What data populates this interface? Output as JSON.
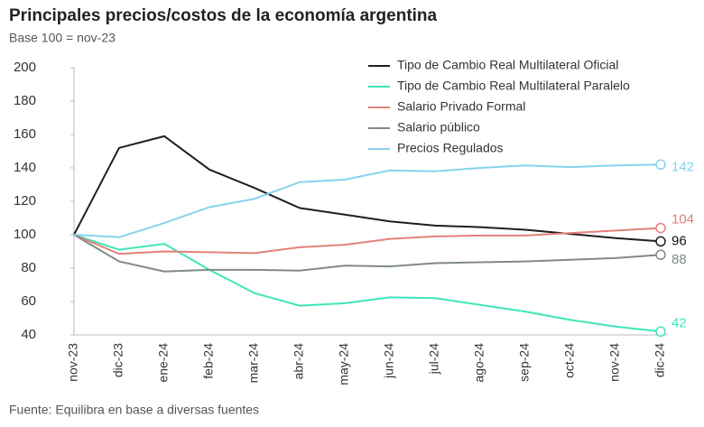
{
  "chart_data": {
    "type": "line",
    "title": "Principales precios/costos de la economía argentina",
    "subtitle": "Base 100 = nov-23",
    "source": "Fuente: Equilibra en base a diversas fuentes",
    "categories": [
      "nov-23",
      "dic-23",
      "ene-24",
      "feb-24",
      "mar-24",
      "abr-24",
      "may-24",
      "jun-24",
      "jul-24",
      "ago-24",
      "sep-24",
      "oct-24",
      "nov-24",
      "dic-24"
    ],
    "series": [
      {
        "name": "Tipo de Cambio Real Multilateral Oficial",
        "color": "#1f1f1f",
        "values": [
          100,
          152,
          159,
          139,
          128,
          116,
          112,
          108,
          105.5,
          104.5,
          103,
          100.5,
          98,
          96
        ]
      },
      {
        "name": "Tipo de Cambio Real Multilateral Paralelo",
        "color": "#3ee6b9",
        "values": [
          100,
          91,
          94.5,
          79,
          65,
          57.5,
          59,
          62.5,
          62,
          58,
          54,
          49,
          45,
          42
        ]
      },
      {
        "name": "Salario Privado Formal",
        "color": "#e3807a",
        "values": [
          100,
          88.5,
          90,
          89.5,
          89,
          92.5,
          94,
          97.5,
          99,
          99.5,
          99.5,
          101,
          102.5,
          104
        ]
      },
      {
        "name": "Salario público",
        "color": "#7f8a88",
        "values": [
          100,
          84,
          78,
          79,
          79,
          78.5,
          81.5,
          81,
          83,
          83.5,
          84,
          85,
          86,
          88
        ]
      },
      {
        "name": "Precios Regulados",
        "color": "#86d2ef",
        "values": [
          100,
          98.5,
          107,
          116.5,
          121.5,
          131.5,
          133,
          138.5,
          138,
          140,
          141.5,
          140.5,
          141.5,
          142
        ]
      }
    ],
    "ylim": [
      40,
      200
    ],
    "yticks": [
      40,
      60,
      80,
      100,
      120,
      140,
      160,
      180,
      200
    ],
    "grid": false,
    "legend": "top-right"
  }
}
